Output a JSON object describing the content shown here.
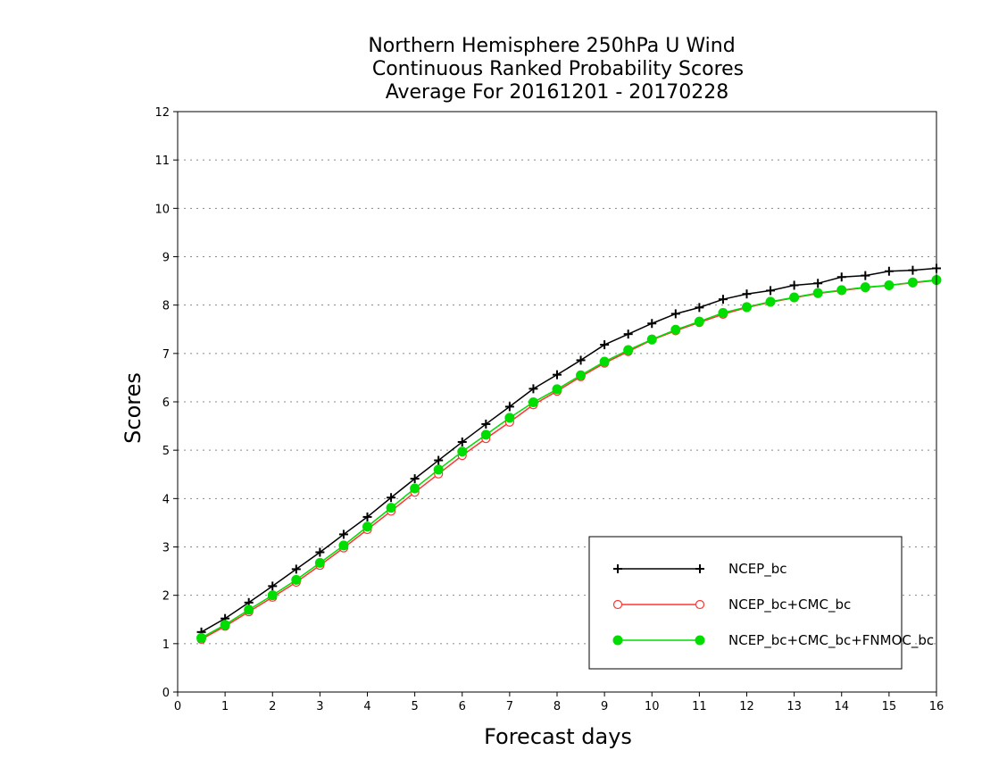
{
  "chart_data": {
    "type": "line",
    "title_lines": [
      "Northern Hemisphere 250hPa U Wind",
      "Continuous Ranked Probability Scores",
      "Average For 20161201 - 20170228"
    ],
    "xlabel": "Forecast days",
    "ylabel": "Scores",
    "xlim": [
      0,
      16
    ],
    "ylim": [
      0,
      12
    ],
    "x_ticks": [
      "0",
      "1",
      "2",
      "3",
      "4",
      "5",
      "6",
      "7",
      "8",
      "9",
      "10",
      "11",
      "12",
      "13",
      "14",
      "15",
      "16"
    ],
    "y_ticks": [
      "0",
      "1",
      "2",
      "3",
      "4",
      "5",
      "6",
      "7",
      "8",
      "9",
      "10",
      "11",
      "12"
    ],
    "grid": "horizontal-dotted",
    "legend_position": "bottom-right",
    "x": [
      0.5,
      1,
      1.5,
      2,
      2.5,
      3,
      3.5,
      4,
      4.5,
      5,
      5.5,
      6,
      6.5,
      7,
      7.5,
      8,
      8.5,
      9,
      9.5,
      10,
      10.5,
      11,
      11.5,
      12,
      12.5,
      13,
      13.5,
      14,
      14.5,
      15,
      15.5,
      16
    ],
    "series": [
      {
        "name": "NCEP_bc",
        "color": "#000000",
        "marker": "plus",
        "values": [
          1.24,
          1.52,
          1.85,
          2.19,
          2.54,
          2.89,
          3.26,
          3.62,
          4.02,
          4.41,
          4.79,
          5.17,
          5.54,
          5.9,
          6.27,
          6.56,
          6.86,
          7.18,
          7.4,
          7.62,
          7.82,
          7.95,
          8.12,
          8.23,
          8.3,
          8.41,
          8.45,
          8.58,
          8.61,
          8.7,
          8.72,
          8.76
        ]
      },
      {
        "name": "NCEP_bc+CMC_bc",
        "color": "#ff3333",
        "marker": "open-circle",
        "values": [
          1.09,
          1.36,
          1.66,
          1.96,
          2.27,
          2.62,
          2.98,
          3.36,
          3.74,
          4.13,
          4.51,
          4.89,
          5.24,
          5.58,
          5.94,
          6.22,
          6.52,
          6.8,
          7.04,
          7.28,
          7.47,
          7.64,
          7.81,
          7.95,
          8.06,
          8.15,
          8.24,
          8.3,
          8.36,
          8.41,
          8.46,
          8.51
        ]
      },
      {
        "name": "NCEP_bc+CMC_bc+FNMOC_bc",
        "color": "#00dd00",
        "marker": "filled-circle",
        "values": [
          1.12,
          1.39,
          1.7,
          2.0,
          2.32,
          2.67,
          3.03,
          3.42,
          3.81,
          4.21,
          4.6,
          4.97,
          5.32,
          5.67,
          5.99,
          6.26,
          6.55,
          6.83,
          7.07,
          7.29,
          7.49,
          7.66,
          7.84,
          7.96,
          8.07,
          8.16,
          8.25,
          8.31,
          8.37,
          8.41,
          8.47,
          8.52
        ]
      }
    ]
  }
}
